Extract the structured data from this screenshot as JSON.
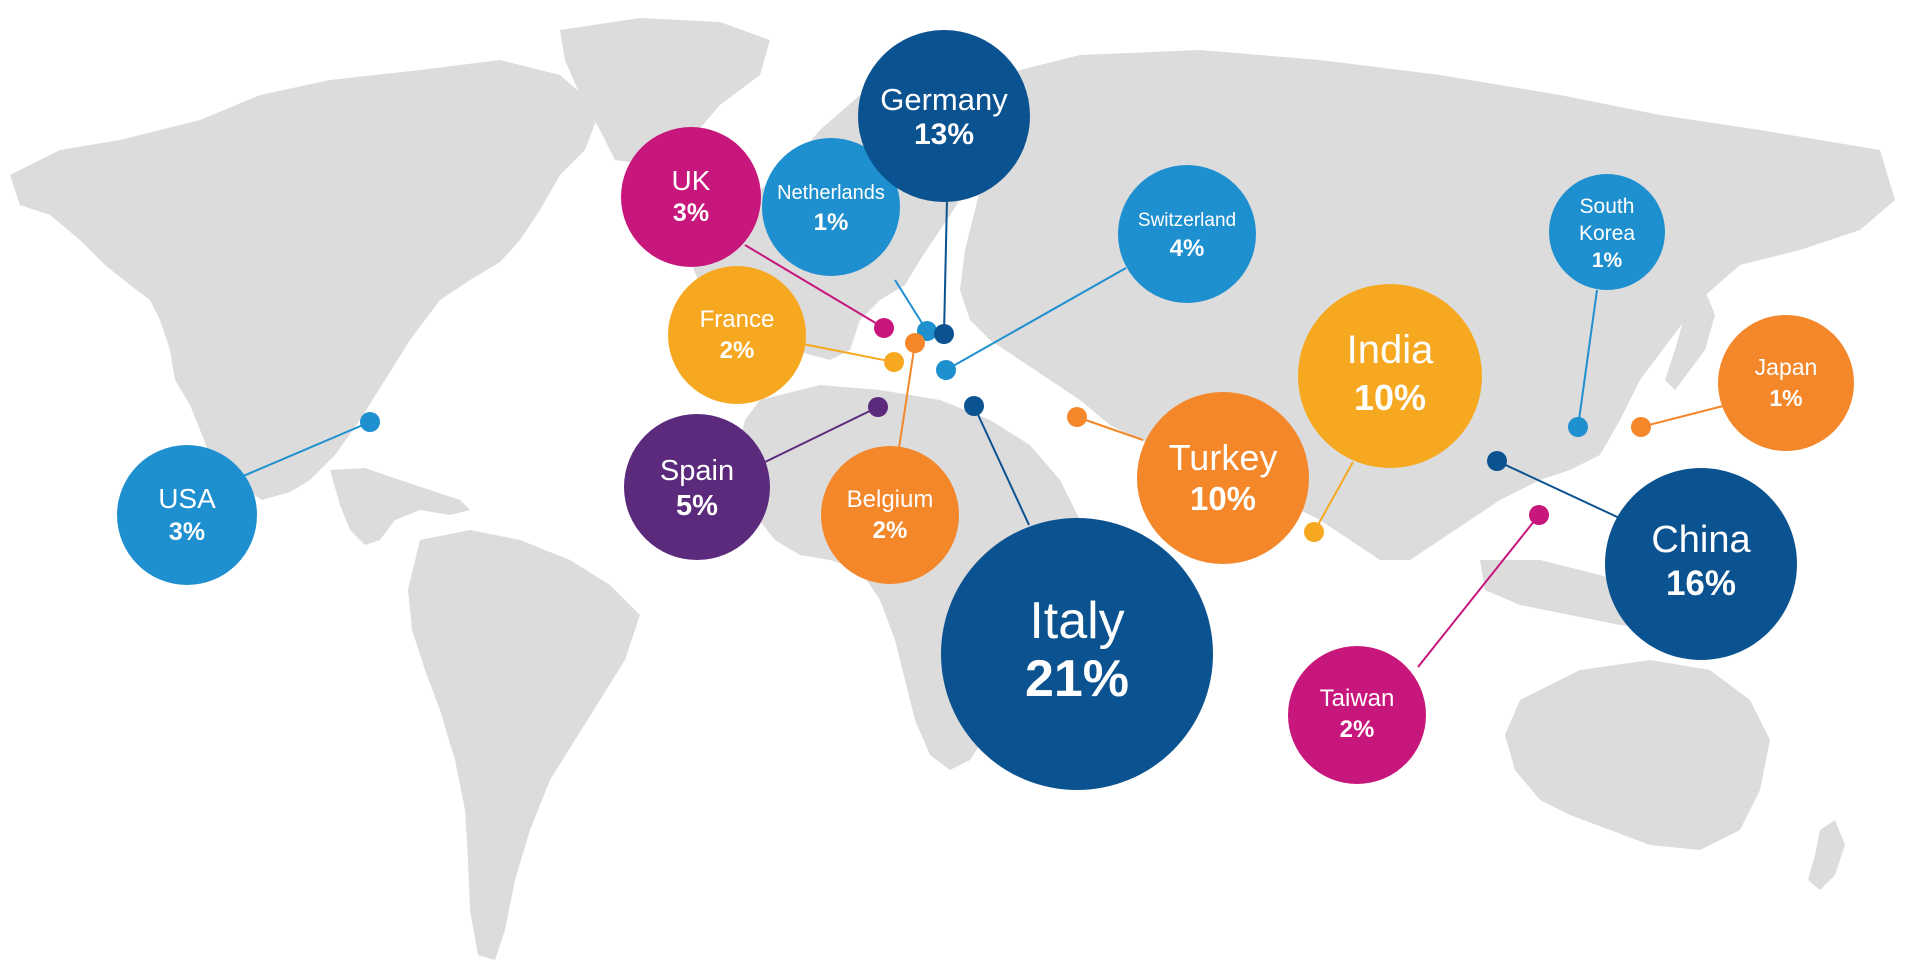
{
  "countries": [
    {
      "id": "usa",
      "name": "USA",
      "pct": "3%",
      "color": "#1e8fcf"
    },
    {
      "id": "uk",
      "name": "UK",
      "pct": "3%",
      "color": "#c8177c"
    },
    {
      "id": "netherlands",
      "name": "Netherlands",
      "pct": "1%",
      "color": "#1e8fcf"
    },
    {
      "id": "germany",
      "name": "Germany",
      "pct": "13%",
      "color": "#0b5290"
    },
    {
      "id": "switzerland",
      "name": "Switzerland",
      "pct": "4%",
      "color": "#1e8fcf"
    },
    {
      "id": "france",
      "name": "France",
      "pct": "2%",
      "color": "#f6a821"
    },
    {
      "id": "spain",
      "name": "Spain",
      "pct": "5%",
      "color": "#5b2a7c"
    },
    {
      "id": "belgium",
      "name": "Belgium",
      "pct": "2%",
      "color": "#f3872a"
    },
    {
      "id": "italy",
      "name": "Italy",
      "pct": "21%",
      "color": "#0b5290"
    },
    {
      "id": "turkey",
      "name": "Turkey",
      "pct": "10%",
      "color": "#f3872a"
    },
    {
      "id": "india",
      "name": "India",
      "pct": "10%",
      "color": "#f6a821"
    },
    {
      "id": "south-korea",
      "name": [
        "South",
        "Korea"
      ],
      "pct": "1%",
      "color": "#1e8fcf"
    },
    {
      "id": "japan",
      "name": "Japan",
      "pct": "1%",
      "color": "#f3872a"
    },
    {
      "id": "china",
      "name": "China",
      "pct": "16%",
      "color": "#0b5290"
    },
    {
      "id": "taiwan",
      "name": "Taiwan",
      "pct": "2%",
      "color": "#c8177c"
    }
  ],
  "land_color": "#dcdcdd"
}
